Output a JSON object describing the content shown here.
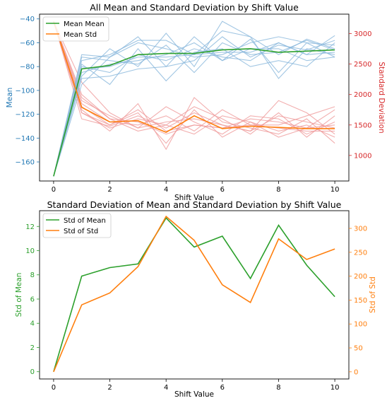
{
  "colors": {
    "mean": "#2ca02c",
    "std": "#ff7f0e",
    "left_axis_top": "#1f77b4",
    "right_axis_top": "#d62728",
    "thin_mean": "#8ab8dc",
    "thin_std": "#ef9a9a"
  },
  "chart_data": [
    {
      "type": "line",
      "title": "All Mean and Standard Deviation by Shift Value",
      "xlabel": "Shift Value",
      "ylabel": "Mean",
      "ylabel_right": "Standard Deviation",
      "xlim": [
        0,
        10
      ],
      "ylim": [
        -176,
        -36
      ],
      "ylim_right": [
        580,
        3320
      ],
      "xticks": [
        0,
        2,
        4,
        6,
        8,
        10
      ],
      "yticks": [
        -40,
        -60,
        -80,
        -100,
        -120,
        -140,
        -160
      ],
      "yticks_right": [
        1000,
        1500,
        2000,
        2500,
        3000
      ],
      "legend": "top-left",
      "legend_entries": [
        "Mean Mean",
        "Mean Std"
      ],
      "x": [
        0,
        1,
        2,
        3,
        4,
        5,
        6,
        7,
        8,
        9,
        10
      ],
      "series": [
        {
          "name": "Mean Mean",
          "axis": "left",
          "values": [
            -172,
            -82,
            -79,
            -70,
            -69,
            -69,
            -66,
            -65,
            -68,
            -67,
            -66
          ]
        },
        {
          "name": "Mean Std",
          "axis": "right",
          "values": [
            3200,
            1790,
            1550,
            1570,
            1380,
            1650,
            1440,
            1480,
            1460,
            1440,
            1440
          ]
        }
      ],
      "individual_runs_mean": [
        [
          -172,
          -70,
          -72,
          -55,
          -80,
          -55,
          -75,
          -57,
          -85,
          -60,
          -72
        ],
        [
          -172,
          -95,
          -72,
          -60,
          -65,
          -72,
          -70,
          -60,
          -55,
          -60,
          -62
        ],
        [
          -172,
          -80,
          -85,
          -70,
          -75,
          -65,
          -72,
          -75,
          -60,
          -70,
          -54
        ],
        [
          -172,
          -75,
          -70,
          -58,
          -58,
          -70,
          -50,
          -55,
          -70,
          -57,
          -65
        ],
        [
          -172,
          -85,
          -78,
          -75,
          -70,
          -60,
          -75,
          -65,
          -65,
          -75,
          -72
        ],
        [
          -172,
          -88,
          -65,
          -80,
          -52,
          -80,
          -42,
          -55,
          -90,
          -65,
          -70
        ],
        [
          -172,
          -72,
          -75,
          -78,
          -62,
          -85,
          -60,
          -70,
          -68,
          -58,
          -66
        ],
        [
          -172,
          -78,
          -95,
          -65,
          -92,
          -68,
          -65,
          -80,
          -75,
          -80,
          -60
        ],
        [
          -172,
          -82,
          -80,
          -72,
          -72,
          -70,
          -68,
          -68,
          -60,
          -70,
          -68
        ],
        [
          -172,
          -90,
          -88,
          -82,
          -80,
          -75,
          -55,
          -72,
          -62,
          -66,
          -58
        ]
      ],
      "individual_runs_std": [
        [
          3200,
          1900,
          1650,
          1450,
          1550,
          1600,
          1500,
          1400,
          1900,
          1700,
          1350
        ],
        [
          3200,
          1800,
          1500,
          1700,
          1200,
          1750,
          1300,
          1550,
          1400,
          1500,
          1300
        ],
        [
          3200,
          1700,
          1450,
          1600,
          1500,
          1800,
          1600,
          1350,
          1700,
          1300,
          1650
        ],
        [
          3200,
          2000,
          1600,
          1550,
          1350,
          1500,
          1450,
          1600,
          1550,
          1450,
          1500
        ],
        [
          3200,
          1750,
          1400,
          1850,
          1100,
          1950,
          1550,
          1450,
          1350,
          1600,
          1200
        ],
        [
          3200,
          1850,
          1550,
          1500,
          1650,
          1400,
          1750,
          1500,
          1450,
          1400,
          1400
        ],
        [
          3200,
          2200,
          1700,
          1450,
          1800,
          1550,
          1350,
          1650,
          1600,
          1350,
          1550
        ],
        [
          3200,
          1600,
          1480,
          1650,
          1450,
          1700,
          1500,
          1400,
          1650,
          1550,
          1450
        ],
        [
          3200,
          1950,
          1600,
          1400,
          1500,
          1350,
          1650,
          1550,
          1300,
          1450,
          1750
        ],
        [
          3200,
          1700,
          1500,
          1750,
          1400,
          1500,
          1450,
          1500,
          1500,
          1650,
          1800
        ]
      ]
    },
    {
      "type": "line",
      "title": "Standard Deviation of Mean and Standard Deviation by Shift Value",
      "xlabel": "Shift Value",
      "ylabel": "Std of Mean",
      "ylabel_right": "Std of Std",
      "xlim": [
        0,
        10
      ],
      "ylim": [
        -0.6,
        13.3
      ],
      "ylim_right": [
        -15,
        337
      ],
      "xticks": [
        0,
        2,
        4,
        6,
        8,
        10
      ],
      "yticks": [
        0,
        2,
        4,
        6,
        8,
        10,
        12
      ],
      "yticks_right": [
        0,
        50,
        100,
        150,
        200,
        250,
        300
      ],
      "legend": "top-left",
      "legend_entries": [
        "Std of Mean",
        "Std of Std"
      ],
      "x": [
        0,
        1,
        2,
        3,
        4,
        5,
        6,
        7,
        8,
        9,
        10
      ],
      "series": [
        {
          "name": "Std of Mean",
          "axis": "left",
          "values": [
            0,
            7.9,
            8.6,
            8.9,
            12.7,
            10.3,
            11.2,
            7.7,
            12.1,
            8.8,
            6.2
          ]
        },
        {
          "name": "Std of Std",
          "axis": "right",
          "values": [
            0,
            140,
            165,
            220,
            325,
            275,
            182,
            145,
            278,
            235,
            257
          ]
        }
      ]
    }
  ]
}
